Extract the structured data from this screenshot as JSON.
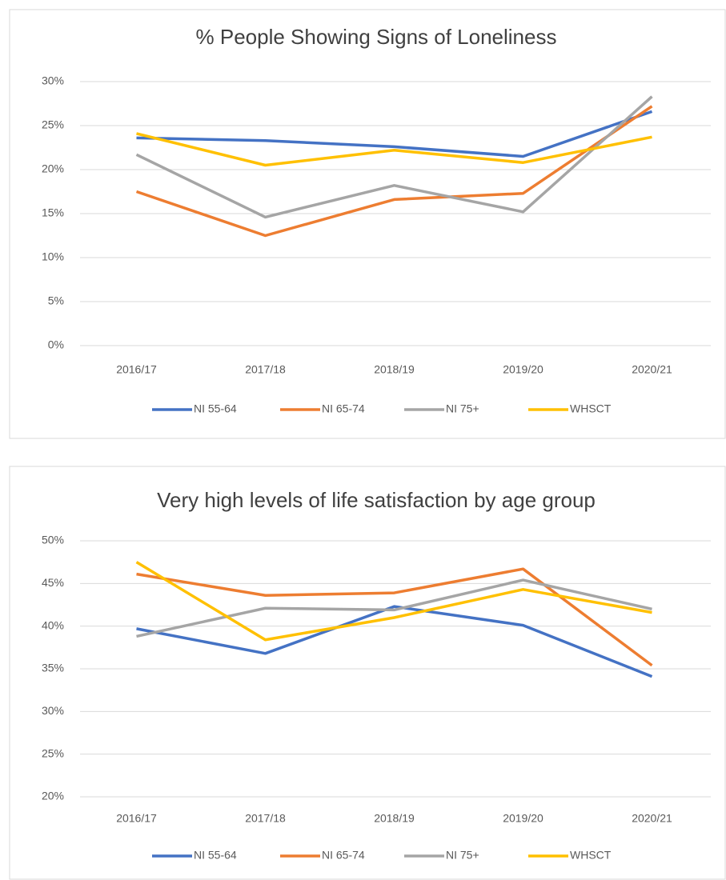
{
  "chart_data": [
    {
      "type": "line",
      "title": "% People Showing Signs of Loneliness",
      "categories": [
        "2016/17",
        "2017/18",
        "2018/19",
        "2019/20",
        "2020/21"
      ],
      "ylim": [
        0,
        30
      ],
      "yticks": [
        {
          "value": 0,
          "label": "0%"
        },
        {
          "value": 5,
          "label": "5%"
        },
        {
          "value": 10,
          "label": "10%"
        },
        {
          "value": 15,
          "label": "15%"
        },
        {
          "value": 20,
          "label": "20%"
        },
        {
          "value": 25,
          "label": "25%"
        },
        {
          "value": 30,
          "label": "30%"
        }
      ],
      "grid": true,
      "legend": "bottom",
      "series": [
        {
          "name": "NI 55-64",
          "color": "#4472c4",
          "values": [
            23.6,
            23.3,
            22.6,
            21.5,
            26.6
          ]
        },
        {
          "name": "NI 65-74",
          "color": "#ed7d31",
          "values": [
            17.5,
            12.5,
            16.6,
            17.3,
            27.2
          ]
        },
        {
          "name": "NI 75+",
          "color": "#a5a5a5",
          "values": [
            21.7,
            14.6,
            18.2,
            15.2,
            28.3
          ]
        },
        {
          "name": "WHSCT",
          "color": "#ffc000",
          "values": [
            24.1,
            20.5,
            22.2,
            20.8,
            23.7
          ]
        }
      ]
    },
    {
      "type": "line",
      "title": "Very high levels of life satisfaction by age group",
      "categories": [
        "2016/17",
        "2017/18",
        "2018/19",
        "2019/20",
        "2020/21"
      ],
      "ylim": [
        20,
        50
      ],
      "yticks": [
        {
          "value": 20,
          "label": "20%"
        },
        {
          "value": 25,
          "label": "25%"
        },
        {
          "value": 30,
          "label": "30%"
        },
        {
          "value": 35,
          "label": "35%"
        },
        {
          "value": 40,
          "label": "40%"
        },
        {
          "value": 45,
          "label": "45%"
        },
        {
          "value": 50,
          "label": "50%"
        }
      ],
      "grid": true,
      "legend": "bottom",
      "series": [
        {
          "name": "NI 55-64",
          "color": "#4472c4",
          "values": [
            39.7,
            36.8,
            42.3,
            40.1,
            34.1
          ]
        },
        {
          "name": "NI 65-74",
          "color": "#ed7d31",
          "values": [
            46.1,
            43.6,
            43.9,
            46.7,
            35.4
          ]
        },
        {
          "name": "NI 75+",
          "color": "#a5a5a5",
          "values": [
            38.8,
            42.1,
            41.9,
            45.4,
            42.0
          ]
        },
        {
          "name": "WHSCT",
          "color": "#ffc000",
          "values": [
            47.5,
            38.4,
            41.0,
            44.3,
            41.6
          ]
        }
      ]
    }
  ]
}
